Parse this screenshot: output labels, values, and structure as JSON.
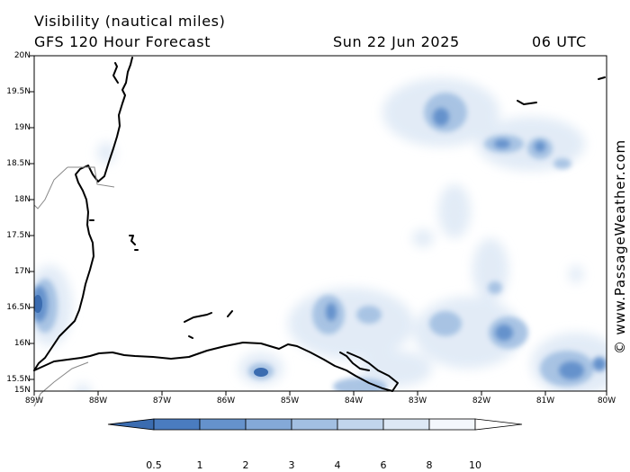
{
  "header": {
    "title": "Visibility (nautical miles)",
    "model": "GFS 120 Hour Forecast",
    "date": "Sun 22 Jun 2025",
    "time": "06 UTC"
  },
  "axes": {
    "lat_labels": [
      "20N",
      "19.5N",
      "19N",
      "18.5N",
      "18N",
      "17.5N",
      "17N",
      "16.5N",
      "16N",
      "15.5N",
      "15N"
    ],
    "lon_labels": [
      "89W",
      "88W",
      "87W",
      "86W",
      "85W",
      "84W",
      "83W",
      "82W",
      "81W",
      "80W"
    ]
  },
  "colorbar": {
    "labels": [
      "0.5",
      "1",
      "2",
      "3",
      "4",
      "6",
      "8",
      "10"
    ],
    "colors": [
      "#3b6cb0",
      "#4a7cc0",
      "#6592cc",
      "#84a9d8",
      "#a2bfe2",
      "#c1d5ec",
      "#dde8f5",
      "#f3f7fc",
      "#ffffff"
    ]
  },
  "credit": "© www.PassageWeather.com",
  "map": {
    "region": "Western Caribbean",
    "lat_range": [
      15,
      20
    ],
    "lon_range": [
      -89,
      -80
    ],
    "coast_color": "#000000",
    "border_color": "#888888"
  }
}
